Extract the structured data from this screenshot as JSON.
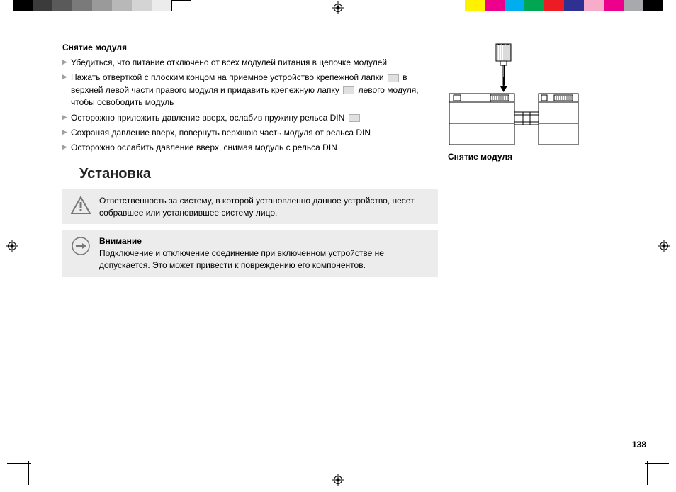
{
  "colorbars": {
    "left": {
      "x": 18,
      "swatches": [
        {
          "w": 28,
          "color": "#000000"
        },
        {
          "w": 28,
          "color": "#3b3b3b"
        },
        {
          "w": 28,
          "color": "#5a5a5a"
        },
        {
          "w": 28,
          "color": "#7a7a7a"
        },
        {
          "w": 28,
          "color": "#9a9a9a"
        },
        {
          "w": 28,
          "color": "#b8b8b8"
        },
        {
          "w": 28,
          "color": "#d4d4d4"
        },
        {
          "w": 28,
          "color": "#ececec"
        },
        {
          "w": 28,
          "color": "#ffffff",
          "border": "#000000"
        }
      ]
    },
    "right": {
      "x": 18,
      "swatches": [
        {
          "w": 28,
          "color": "#fff200"
        },
        {
          "w": 28,
          "color": "#ec008c"
        },
        {
          "w": 28,
          "color": "#00aeef"
        },
        {
          "w": 28,
          "color": "#00a651"
        },
        {
          "w": 28,
          "color": "#ed1c24"
        },
        {
          "w": 28,
          "color": "#2e3192"
        },
        {
          "w": 28,
          "color": "#f7adc9"
        },
        {
          "w": 28,
          "color": "#ec008c"
        },
        {
          "w": 28,
          "color": "#a7a9ac"
        },
        {
          "w": 28,
          "color": "#000000"
        }
      ]
    }
  },
  "removal": {
    "title": "Снятие модуля",
    "steps": [
      {
        "parts": [
          {
            "t": "Убедиться, что питание отключено от всех модулей питания в цепочке модулей"
          }
        ]
      },
      {
        "parts": [
          {
            "t": "Нажать отверткой с плоским концом на приемное устройство крепежной лапки "
          },
          {
            "tag": true
          },
          {
            "t": " в верхней левой части правого модуля и придавить крепежную лапку "
          },
          {
            "tag": true
          },
          {
            "t": " левого модуля, чтобы освободить модуль"
          }
        ]
      },
      {
        "parts": [
          {
            "t": "Осторожно приложить давление вверх, ослабив пружину рельса DIN "
          },
          {
            "tag": true
          }
        ]
      },
      {
        "parts": [
          {
            "t": "Сохраняя давление вверх, повернуть верхнюю часть модуля от рельса DIN"
          }
        ]
      },
      {
        "parts": [
          {
            "t": "Осторожно ослабить давление вверх, снимая модуль с рельса DIN"
          }
        ]
      }
    ]
  },
  "install_heading": "Установка",
  "note1": {
    "text": "Ответственность за систему, в которой установленно данное устройство, несет собравшее или установившее систему лицо."
  },
  "note2": {
    "title": "Внимание",
    "text": "Подключение и отключение соединение при включенном устройстве не допускается. Это может привести к повреждению его компонентов."
  },
  "figure_caption": "Снятие модуля",
  "page_number": "138"
}
